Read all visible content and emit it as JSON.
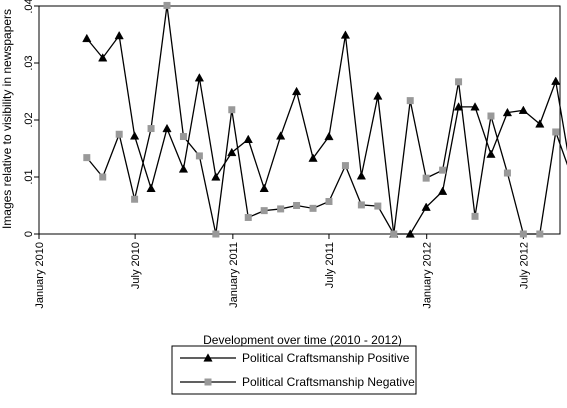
{
  "chart_data": {
    "type": "line",
    "xlabel": "Development over time (2010 - 2012)",
    "ylabel": "Images relative to visibility in newspapers",
    "ylim": [
      0,
      0.04
    ],
    "yticks": [
      {
        "value": 0,
        "label": "0"
      },
      {
        "value": 0.01,
        "label": ".01"
      },
      {
        "value": 0.02,
        "label": ".02"
      },
      {
        "value": 0.03,
        "label": ".03"
      },
      {
        "value": 0.04,
        "label": ".04"
      }
    ],
    "xlim": [
      "2010-01-01",
      "2012-09-08"
    ],
    "xticks": [
      {
        "value": "2010-01-01",
        "label": "January 2010"
      },
      {
        "value": "2010-07-01",
        "label": "July 2010"
      },
      {
        "value": "2011-01-01",
        "label": "January 2011"
      },
      {
        "value": "2011-07-01",
        "label": "July 2011"
      },
      {
        "value": "2012-01-01",
        "label": "January 2012"
      },
      {
        "value": "2012-07-01",
        "label": "July 2012"
      }
    ],
    "legend_position": "bottom",
    "series": [
      {
        "name": "Political Craftsmanship Positive",
        "marker": "triangle",
        "color": "#000000",
        "points": [
          {
            "x": "2010-04-01",
            "y": 0.0343
          },
          {
            "x": "2010-05-01",
            "y": 0.0309
          },
          {
            "x": "2010-06-01",
            "y": 0.0348
          },
          {
            "x": "2010-06-30",
            "y": 0.0172
          },
          {
            "x": "2010-07-31",
            "y": 0.008
          },
          {
            "x": "2010-08-30",
            "y": 0.0185
          },
          {
            "x": "2010-09-30",
            "y": 0.0114
          },
          {
            "x": "2010-10-30",
            "y": 0.0274
          },
          {
            "x": "2010-11-30",
            "y": 0.01
          },
          {
            "x": "2010-12-30",
            "y": 0.0143
          },
          {
            "x": "2011-01-30",
            "y": 0.0166
          },
          {
            "x": "2011-03-01",
            "y": 0.008
          },
          {
            "x": "2011-04-01",
            "y": 0.0172
          },
          {
            "x": "2011-05-01",
            "y": 0.025
          },
          {
            "x": "2011-06-01",
            "y": 0.0133
          },
          {
            "x": "2011-07-01",
            "y": 0.0171
          },
          {
            "x": "2011-08-01",
            "y": 0.0349
          },
          {
            "x": "2011-08-31",
            "y": 0.0102
          },
          {
            "x": "2011-10-01",
            "y": 0.0242
          },
          {
            "x": "2011-10-31",
            "y": 0.0
          },
          {
            "x": "2011-12-01",
            "y": 0.0
          },
          {
            "x": "2011-12-31",
            "y": 0.0047
          },
          {
            "x": "2012-01-31",
            "y": 0.0075
          },
          {
            "x": "2012-03-01",
            "y": 0.0223
          },
          {
            "x": "2012-04-01",
            "y": 0.0223
          },
          {
            "x": "2012-05-01",
            "y": 0.014
          },
          {
            "x": "2012-06-01",
            "y": 0.0213
          },
          {
            "x": "2012-07-01",
            "y": 0.0217
          },
          {
            "x": "2012-08-01",
            "y": 0.0193
          },
          {
            "x": "2012-08-31",
            "y": 0.0268
          },
          {
            "x": "2012-10-01",
            "y": 0.0098
          }
        ]
      },
      {
        "name": "Political Craftsmanship Negative",
        "marker": "square",
        "color": "#999999",
        "points": [
          {
            "x": "2010-04-01",
            "y": 0.0134
          },
          {
            "x": "2010-05-01",
            "y": 0.01
          },
          {
            "x": "2010-06-01",
            "y": 0.0175
          },
          {
            "x": "2010-06-30",
            "y": 0.0061
          },
          {
            "x": "2010-07-31",
            "y": 0.0185
          },
          {
            "x": "2010-08-30",
            "y": 0.0401
          },
          {
            "x": "2010-09-30",
            "y": 0.0171
          },
          {
            "x": "2010-10-30",
            "y": 0.0137
          },
          {
            "x": "2010-11-30",
            "y": 0.0
          },
          {
            "x": "2010-12-30",
            "y": 0.0218
          },
          {
            "x": "2011-01-30",
            "y": 0.0029
          },
          {
            "x": "2011-03-01",
            "y": 0.0041
          },
          {
            "x": "2011-04-01",
            "y": 0.0044
          },
          {
            "x": "2011-05-01",
            "y": 0.005
          },
          {
            "x": "2011-06-01",
            "y": 0.0045
          },
          {
            "x": "2011-07-01",
            "y": 0.0057
          },
          {
            "x": "2011-08-01",
            "y": 0.012
          },
          {
            "x": "2011-08-31",
            "y": 0.0051
          },
          {
            "x": "2011-10-01",
            "y": 0.0049
          },
          {
            "x": "2011-10-31",
            "y": 0.0
          },
          {
            "x": "2011-12-01",
            "y": 0.0234
          },
          {
            "x": "2011-12-31",
            "y": 0.0098
          },
          {
            "x": "2012-01-31",
            "y": 0.0112
          },
          {
            "x": "2012-03-01",
            "y": 0.0267
          },
          {
            "x": "2012-04-01",
            "y": 0.0031
          },
          {
            "x": "2012-05-01",
            "y": 0.0207
          },
          {
            "x": "2012-06-01",
            "y": 0.0107
          },
          {
            "x": "2012-07-01",
            "y": 0.0
          },
          {
            "x": "2012-08-01",
            "y": 0.0
          },
          {
            "x": "2012-08-31",
            "y": 0.0179
          },
          {
            "x": "2012-10-01",
            "y": 0.0098
          }
        ]
      }
    ]
  }
}
